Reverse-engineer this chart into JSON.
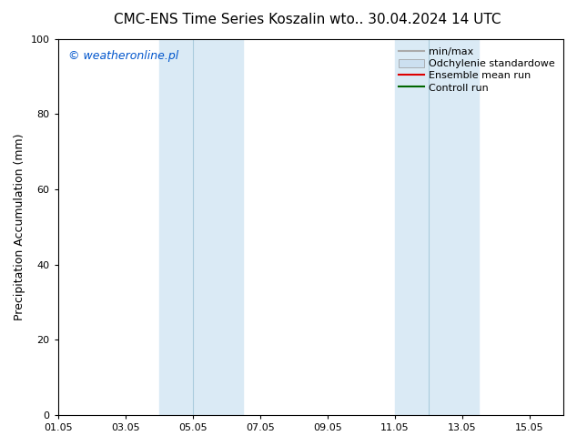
{
  "title_left": "CMC-ENS Time Series Koszalin",
  "title_right": "wto.. 30.04.2024 14 UTC",
  "ylabel": "Precipitation Accumulation (mm)",
  "watermark": "© weatheronline.pl",
  "watermark_color": "#0055cc",
  "ylim": [
    0,
    100
  ],
  "xlim": [
    0,
    15
  ],
  "xtick_labels": [
    "01.05",
    "03.05",
    "05.05",
    "07.05",
    "09.05",
    "11.05",
    "13.05",
    "15.05"
  ],
  "xtick_positions": [
    0,
    2,
    4,
    6,
    8,
    10,
    12,
    14
  ],
  "ytick_labels": [
    "0",
    "20",
    "40",
    "60",
    "80",
    "100"
  ],
  "ytick_positions": [
    0,
    20,
    40,
    60,
    80,
    100
  ],
  "shaded_regions": [
    {
      "x_start": 3.0,
      "x_end": 4.0,
      "color": "#daeaf5"
    },
    {
      "x_start": 4.0,
      "x_end": 5.5,
      "color": "#daeaf5"
    },
    {
      "x_start": 10.0,
      "x_end": 11.0,
      "color": "#daeaf5"
    },
    {
      "x_start": 11.0,
      "x_end": 12.5,
      "color": "#daeaf5"
    }
  ],
  "shaded_dividers": [
    4.0,
    11.0
  ],
  "bg_color": "#ffffff",
  "plot_bg_color": "#ffffff",
  "border_color": "#000000",
  "legend_items": [
    {
      "label": "min/max",
      "color": "#aaaaaa",
      "lw": 1.5,
      "style": "-",
      "type": "line"
    },
    {
      "label": "Odchylenie standardowe",
      "color": "#cce0f0",
      "lw": 6,
      "style": "-",
      "type": "patch"
    },
    {
      "label": "Ensemble mean run",
      "color": "#dd0000",
      "lw": 1.5,
      "style": "-",
      "type": "line"
    },
    {
      "label": "Controll run",
      "color": "#006600",
      "lw": 1.5,
      "style": "-",
      "type": "line"
    }
  ],
  "title_fontsize": 11,
  "axis_label_fontsize": 9,
  "tick_fontsize": 8,
  "legend_fontsize": 8,
  "watermark_fontsize": 9
}
